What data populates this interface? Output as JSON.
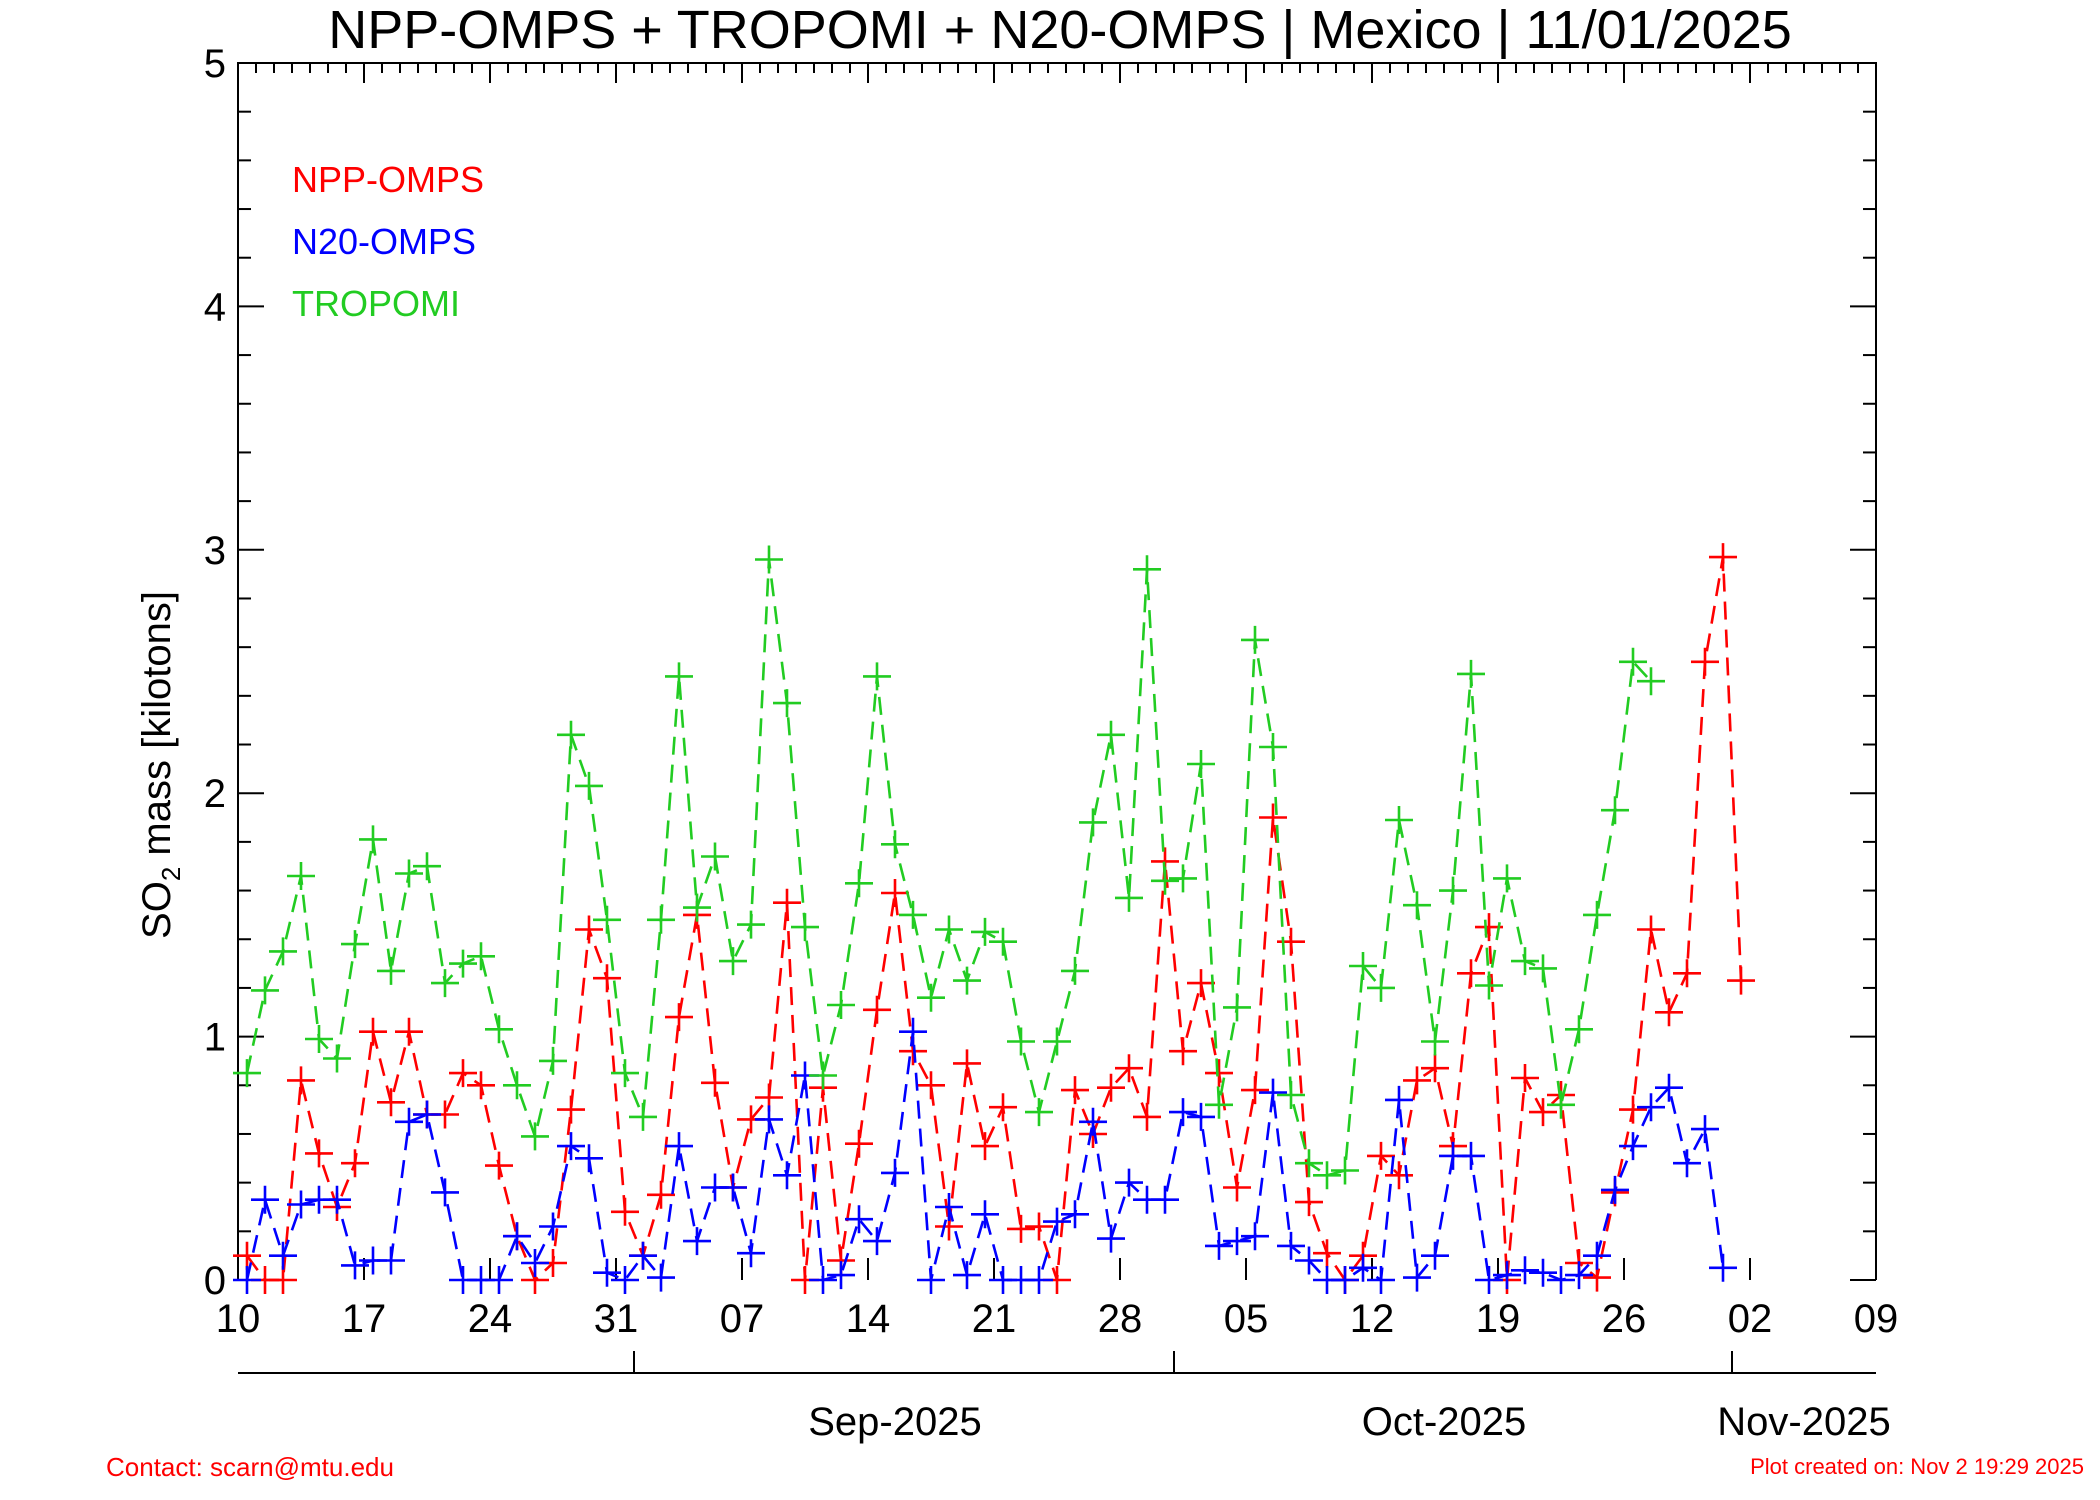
{
  "chart_data": {
    "type": "line",
    "title": "NPP-OMPS + TROPOMI + N20-OMPS | Mexico | 11/01/2025",
    "ylabel_main": "SO",
    "ylabel_sub": "2",
    "ylabel_rest": " mass [kilotons]",
    "ylim": [
      0,
      5
    ],
    "y_ticks": [
      "0",
      "1",
      "2",
      "3",
      "4",
      "5"
    ],
    "x_ticks": [
      "10",
      "17",
      "24",
      "31",
      "07",
      "14",
      "21",
      "28",
      "05",
      "12",
      "19",
      "26",
      "02",
      "09"
    ],
    "months": [
      "Sep-2025",
      "Oct-2025",
      "Nov-2025"
    ],
    "legend": [
      "NPP-OMPS",
      "N20-OMPS",
      "TROPOMI"
    ],
    "colors": {
      "NPP-OMPS": "#ff0000",
      "N20-OMPS": "#0000ff",
      "TROPOMI": "#22cc22"
    },
    "x_start": "2025-08-10",
    "series": [
      {
        "name": "NPP-OMPS",
        "color": "#ff0000",
        "values": [
          0.1,
          0,
          0,
          0.82,
          0.52,
          0.3,
          0.48,
          1.02,
          0.73,
          1.02,
          0.68,
          0.68,
          0.85,
          0.8,
          0.47,
          0.18,
          0,
          0.07,
          0.7,
          1.44,
          1.24,
          0.28,
          0.1,
          0.35,
          1.08,
          1.5,
          0.81,
          0.38,
          0.66,
          0.75,
          1.55,
          0,
          0.79,
          0.08,
          0.56,
          1.11,
          1.59,
          0.94,
          0.8,
          0.22,
          0.89,
          0.55,
          0.71,
          0.21,
          0.22,
          0,
          0.78,
          0.6,
          0.79,
          0.87,
          0.67,
          1.72,
          0.94,
          1.22,
          0.85,
          0.38,
          0.78,
          1.9,
          1.39,
          0.32,
          0.11,
          0,
          0.1,
          0.51,
          0.43,
          0.82,
          0.87,
          0.55,
          1.26,
          1.45,
          0,
          0.83,
          0.69,
          0.76,
          0.07,
          0.01,
          0.36,
          0.7,
          1.44,
          1.1,
          1.26,
          2.54,
          2.97,
          1.23
        ]
      },
      {
        "name": "N20-OMPS",
        "color": "#0000ff",
        "values": [
          0,
          0.33,
          0.1,
          0.31,
          0.33,
          0.33,
          0.06,
          0.08,
          0.08,
          0.65,
          0.68,
          0.36,
          0,
          0,
          0,
          0.18,
          0.07,
          0.22,
          0.55,
          0.5,
          0.03,
          0,
          0.1,
          0.01,
          0.55,
          0.16,
          0.38,
          0.38,
          0.11,
          0.66,
          0.43,
          0.84,
          0,
          0.02,
          0.25,
          0.16,
          0.44,
          1.02,
          0,
          0.3,
          0.02,
          0.27,
          0,
          0,
          0,
          0.24,
          0.27,
          0.65,
          0.17,
          0.4,
          0.33,
          0.33,
          0.69,
          0.67,
          0.14,
          0.16,
          0.18,
          0.77,
          0.14,
          0.08,
          0,
          0,
          0.05,
          0,
          0.74,
          0.01,
          0.1,
          0.51,
          0.51,
          0,
          0.02,
          0.04,
          0.03,
          0,
          0.02,
          0.1,
          0.37,
          0.55,
          0.71,
          0.79,
          0.48,
          0.62,
          0.05
        ]
      },
      {
        "name": "TROPOMI",
        "color": "#22cc22",
        "values": [
          0.85,
          1.19,
          1.35,
          1.66,
          0.99,
          0.91,
          1.38,
          1.81,
          1.27,
          1.67,
          1.7,
          1.22,
          1.3,
          1.33,
          1.03,
          0.8,
          0.59,
          0.9,
          2.24,
          2.03,
          1.48,
          0.85,
          0.67,
          1.48,
          2.48,
          1.53,
          1.74,
          1.31,
          1.46,
          2.96,
          2.37,
          1.45,
          0.84,
          1.13,
          1.63,
          2.48,
          1.79,
          1.5,
          1.16,
          1.44,
          1.23,
          1.43,
          1.39,
          0.98,
          0.69,
          0.98,
          1.27,
          1.88,
          2.24,
          1.57,
          2.92,
          1.64,
          1.65,
          2.12,
          0.72,
          1.12,
          2.63,
          2.19,
          0.76,
          0.48,
          0.43,
          0.45,
          1.29,
          1.2,
          1.89,
          1.54,
          0.98,
          1.6,
          2.49,
          1.21,
          1.65,
          1.31,
          1.28,
          0.72,
          1.03,
          1.5,
          1.93,
          2.54,
          2.46
        ]
      }
    ]
  },
  "footer": {
    "contact": "Contact: scarn@mtu.edu",
    "created": "Plot created on: Nov  2 19:29 2025"
  }
}
